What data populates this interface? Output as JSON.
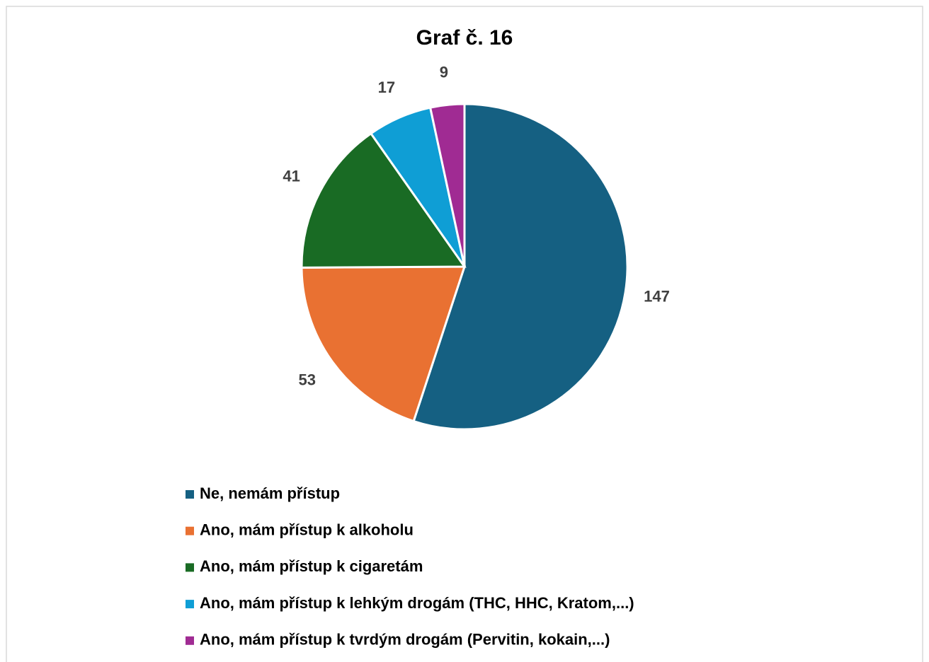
{
  "chart_data": {
    "type": "pie",
    "title": "Graf č. 16",
    "categories": [
      "Ne, nemám přístup",
      "Ano, mám přístup k alkoholu",
      "Ano, mám přístup k cigaretám",
      "Ano, mám přístup k lehkým drogám (THC, HHC,  Kratom,...)",
      "Ano, mám přístup k tvrdým drogám (Pervitin, kokain,...)"
    ],
    "values": [
      147,
      53,
      41,
      17,
      9
    ],
    "colors": [
      "#156082",
      "#e97132",
      "#196b24",
      "#0f9ed5",
      "#a02b93"
    ]
  }
}
